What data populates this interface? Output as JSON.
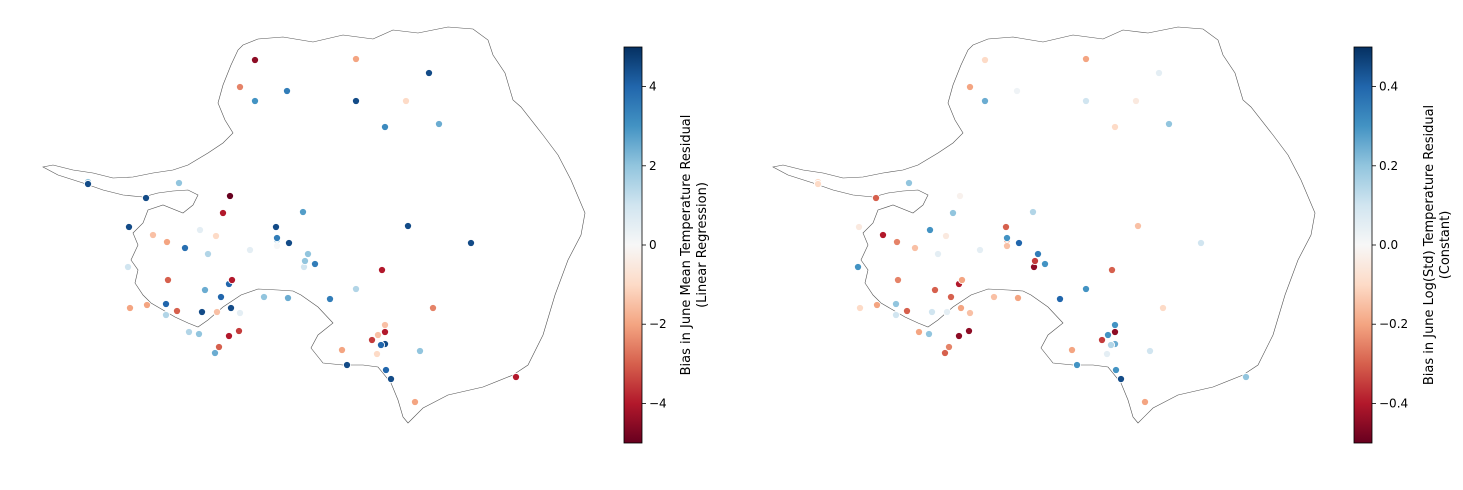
{
  "colormap": {
    "name": "RdBu",
    "stops": [
      "#67001f",
      "#b2182b",
      "#d6604d",
      "#f4a582",
      "#fddbc7",
      "#f7f7f7",
      "#d1e5f0",
      "#92c5de",
      "#4393c3",
      "#2166ac",
      "#053061"
    ]
  },
  "chart_data": [
    {
      "type": "scatter",
      "colorbar": {
        "label_line1": "Bias in June Mean Temperature Residual",
        "label_line2": "(Linear Regression)",
        "range": [
          -5,
          5
        ],
        "ticks": [
          4,
          2,
          0,
          -2,
          -4
        ],
        "tick_labels": [
          "4",
          "2",
          "0",
          "−2",
          "−4"
        ]
      },
      "values": [
        -4.5,
        -2.5,
        3,
        3.5,
        -2,
        4.5,
        4.5,
        3.2,
        -1,
        2.5,
        -5,
        2,
        2,
        4.5,
        4.5,
        4.5,
        3.8,
        -2,
        -1,
        0.5,
        -4,
        -1.5,
        1.5,
        -3,
        1,
        5,
        4.5,
        4,
        4,
        0.5,
        2.8,
        4.5,
        -1.5,
        0.5,
        -3,
        2.5,
        -3,
        1.5,
        2,
        2,
        2.5,
        0,
        -4,
        2.5,
        4.5,
        1,
        2,
        2,
        4.5,
        3.5,
        -2,
        -2,
        2,
        4,
        -4,
        -3.5,
        1.5,
        3.5,
        -4,
        1.5,
        -2,
        -1.5,
        -1.5,
        -4,
        -3.5,
        4,
        4.5,
        4.5,
        4.5,
        4,
        -1,
        3.5,
        2,
        -2.5,
        4.5,
        4.5,
        -4,
        -2
      ]
    },
    {
      "type": "scatter",
      "colorbar": {
        "label_line1": "Bias in June Log(Std) Temperature Residual",
        "label_line2": "(Constant)",
        "range": [
          -0.5,
          0.5
        ],
        "ticks": [
          0.4,
          0.2,
          0.0,
          -0.2,
          -0.4
        ],
        "tick_labels": [
          "0.4",
          "0.2",
          "0.0",
          "−0.2",
          "−0.4"
        ]
      },
      "values": [
        -0.1,
        -0.2,
        0.25,
        0.02,
        -0.2,
        0.05,
        0.1,
        -0.1,
        -0.05,
        0.2,
        -0.02,
        0.2,
        -0.1,
        -0.1,
        -0.3,
        -0.05,
        -0.15,
        -0.25,
        -0.05,
        0.3,
        0.2,
        -0.4,
        0.05,
        -0.25,
        0.3,
        0.25,
        0.1,
        -0.4,
        -0.3,
        0.05,
        0.15,
        -0.2,
        0.05,
        -0.15,
        -0.3,
        -0.3,
        -0.25,
        0.1,
        -0.25,
        -0.15,
        -0.2,
        -0.15,
        -0.2,
        -0.3,
        -0.3,
        -0.45,
        -0.35,
        0.35,
        0.4,
        0.3,
        -0.2,
        -0.1,
        0.2,
        0.2,
        -0.45,
        -0.45,
        -0.2,
        0.4,
        -0.3,
        0.3,
        -0.2,
        0.3,
        0.3,
        -0.45,
        -0.35,
        0.3,
        0.45,
        0.25,
        0.3,
        0.15,
        0.05,
        0.3,
        0.1,
        -0.1,
        -0.15,
        0.1,
        0.2,
        -0.2
      ]
    }
  ]
}
